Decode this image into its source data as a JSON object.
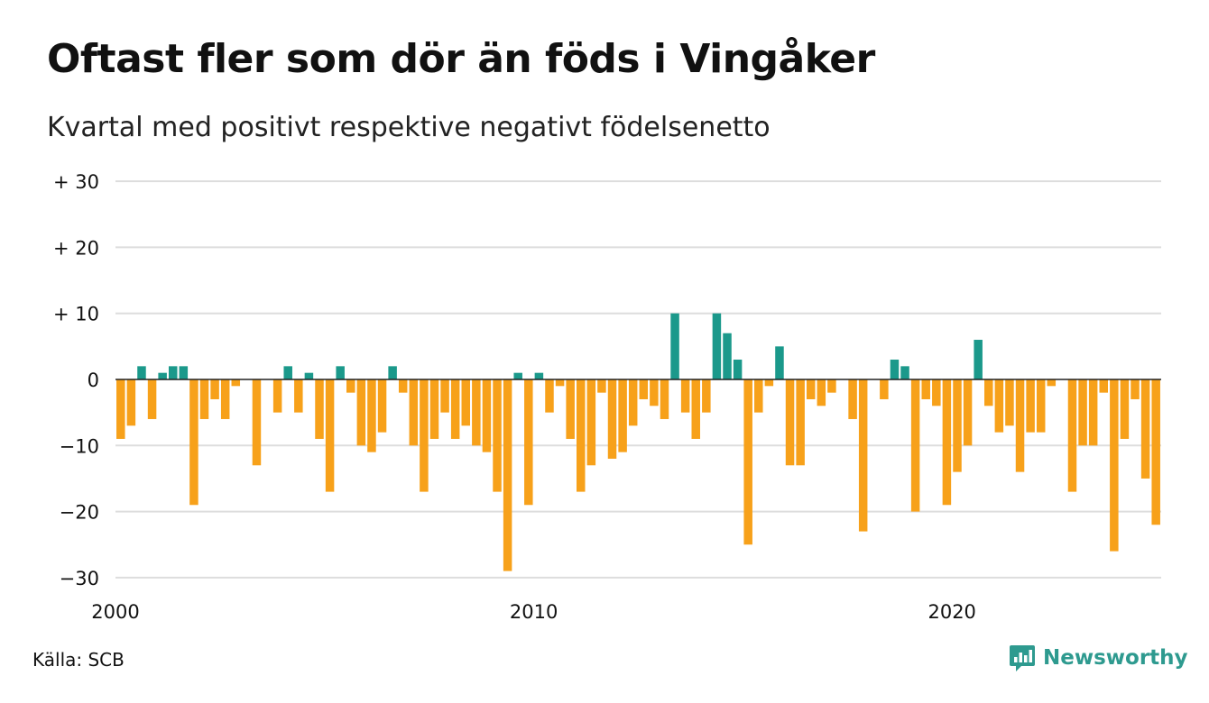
{
  "title": "Oftast fler som dör än föds i Vingåker",
  "subtitle": "Kvartal med positivt respektive negativt födelsenetto",
  "source": "Källa: SCB",
  "brand": {
    "name": "Newsworthy",
    "icon": "newsworthy-logo-icon"
  },
  "colors": {
    "positive": "#1b998b",
    "negative": "#f7a11a",
    "grid": "#dddddd",
    "axis": "#222222"
  },
  "chart_data": {
    "type": "bar",
    "x_start": 2000,
    "x_end": 2025,
    "periods_per_year": 4,
    "y_ticks": [
      {
        "value": 30,
        "label": "+ 30"
      },
      {
        "value": 20,
        "label": "+ 20"
      },
      {
        "value": 10,
        "label": "+ 10"
      },
      {
        "value": 0,
        "label": "0"
      },
      {
        "value": -10,
        "label": "−10"
      },
      {
        "value": -20,
        "label": "−20"
      },
      {
        "value": -30,
        "label": "−30"
      }
    ],
    "x_ticks": [
      {
        "value": 2000,
        "label": "2000"
      },
      {
        "value": 2010,
        "label": "2010"
      },
      {
        "value": 2020,
        "label": "2020"
      }
    ],
    "ylim": [
      -30,
      30
    ],
    "grid": true,
    "values": [
      -9,
      -7,
      2,
      -6,
      1,
      2,
      2,
      -19,
      -6,
      -3,
      -6,
      -1,
      0,
      -13,
      0,
      -5,
      2,
      -5,
      1,
      -9,
      -17,
      2,
      -2,
      -10,
      -11,
      -8,
      2,
      -2,
      -10,
      -17,
      -9,
      -5,
      -9,
      -7,
      -10,
      -11,
      -17,
      -29,
      1,
      -19,
      1,
      -5,
      -1,
      -9,
      -17,
      -13,
      -2,
      -12,
      -11,
      -7,
      -3,
      -4,
      -6,
      10,
      -5,
      -9,
      -5,
      10,
      7,
      3,
      -25,
      -5,
      -1,
      5,
      -13,
      -13,
      -3,
      -4,
      -2,
      0,
      -6,
      -23,
      0,
      -3,
      3,
      2,
      -20,
      -3,
      -4,
      -19,
      -14,
      -10,
      6,
      -4,
      -8,
      -7,
      -14,
      -8,
      -8,
      -1,
      0,
      -17,
      -10,
      -10,
      -2,
      -26,
      -9,
      -3,
      -15,
      -22
    ]
  }
}
